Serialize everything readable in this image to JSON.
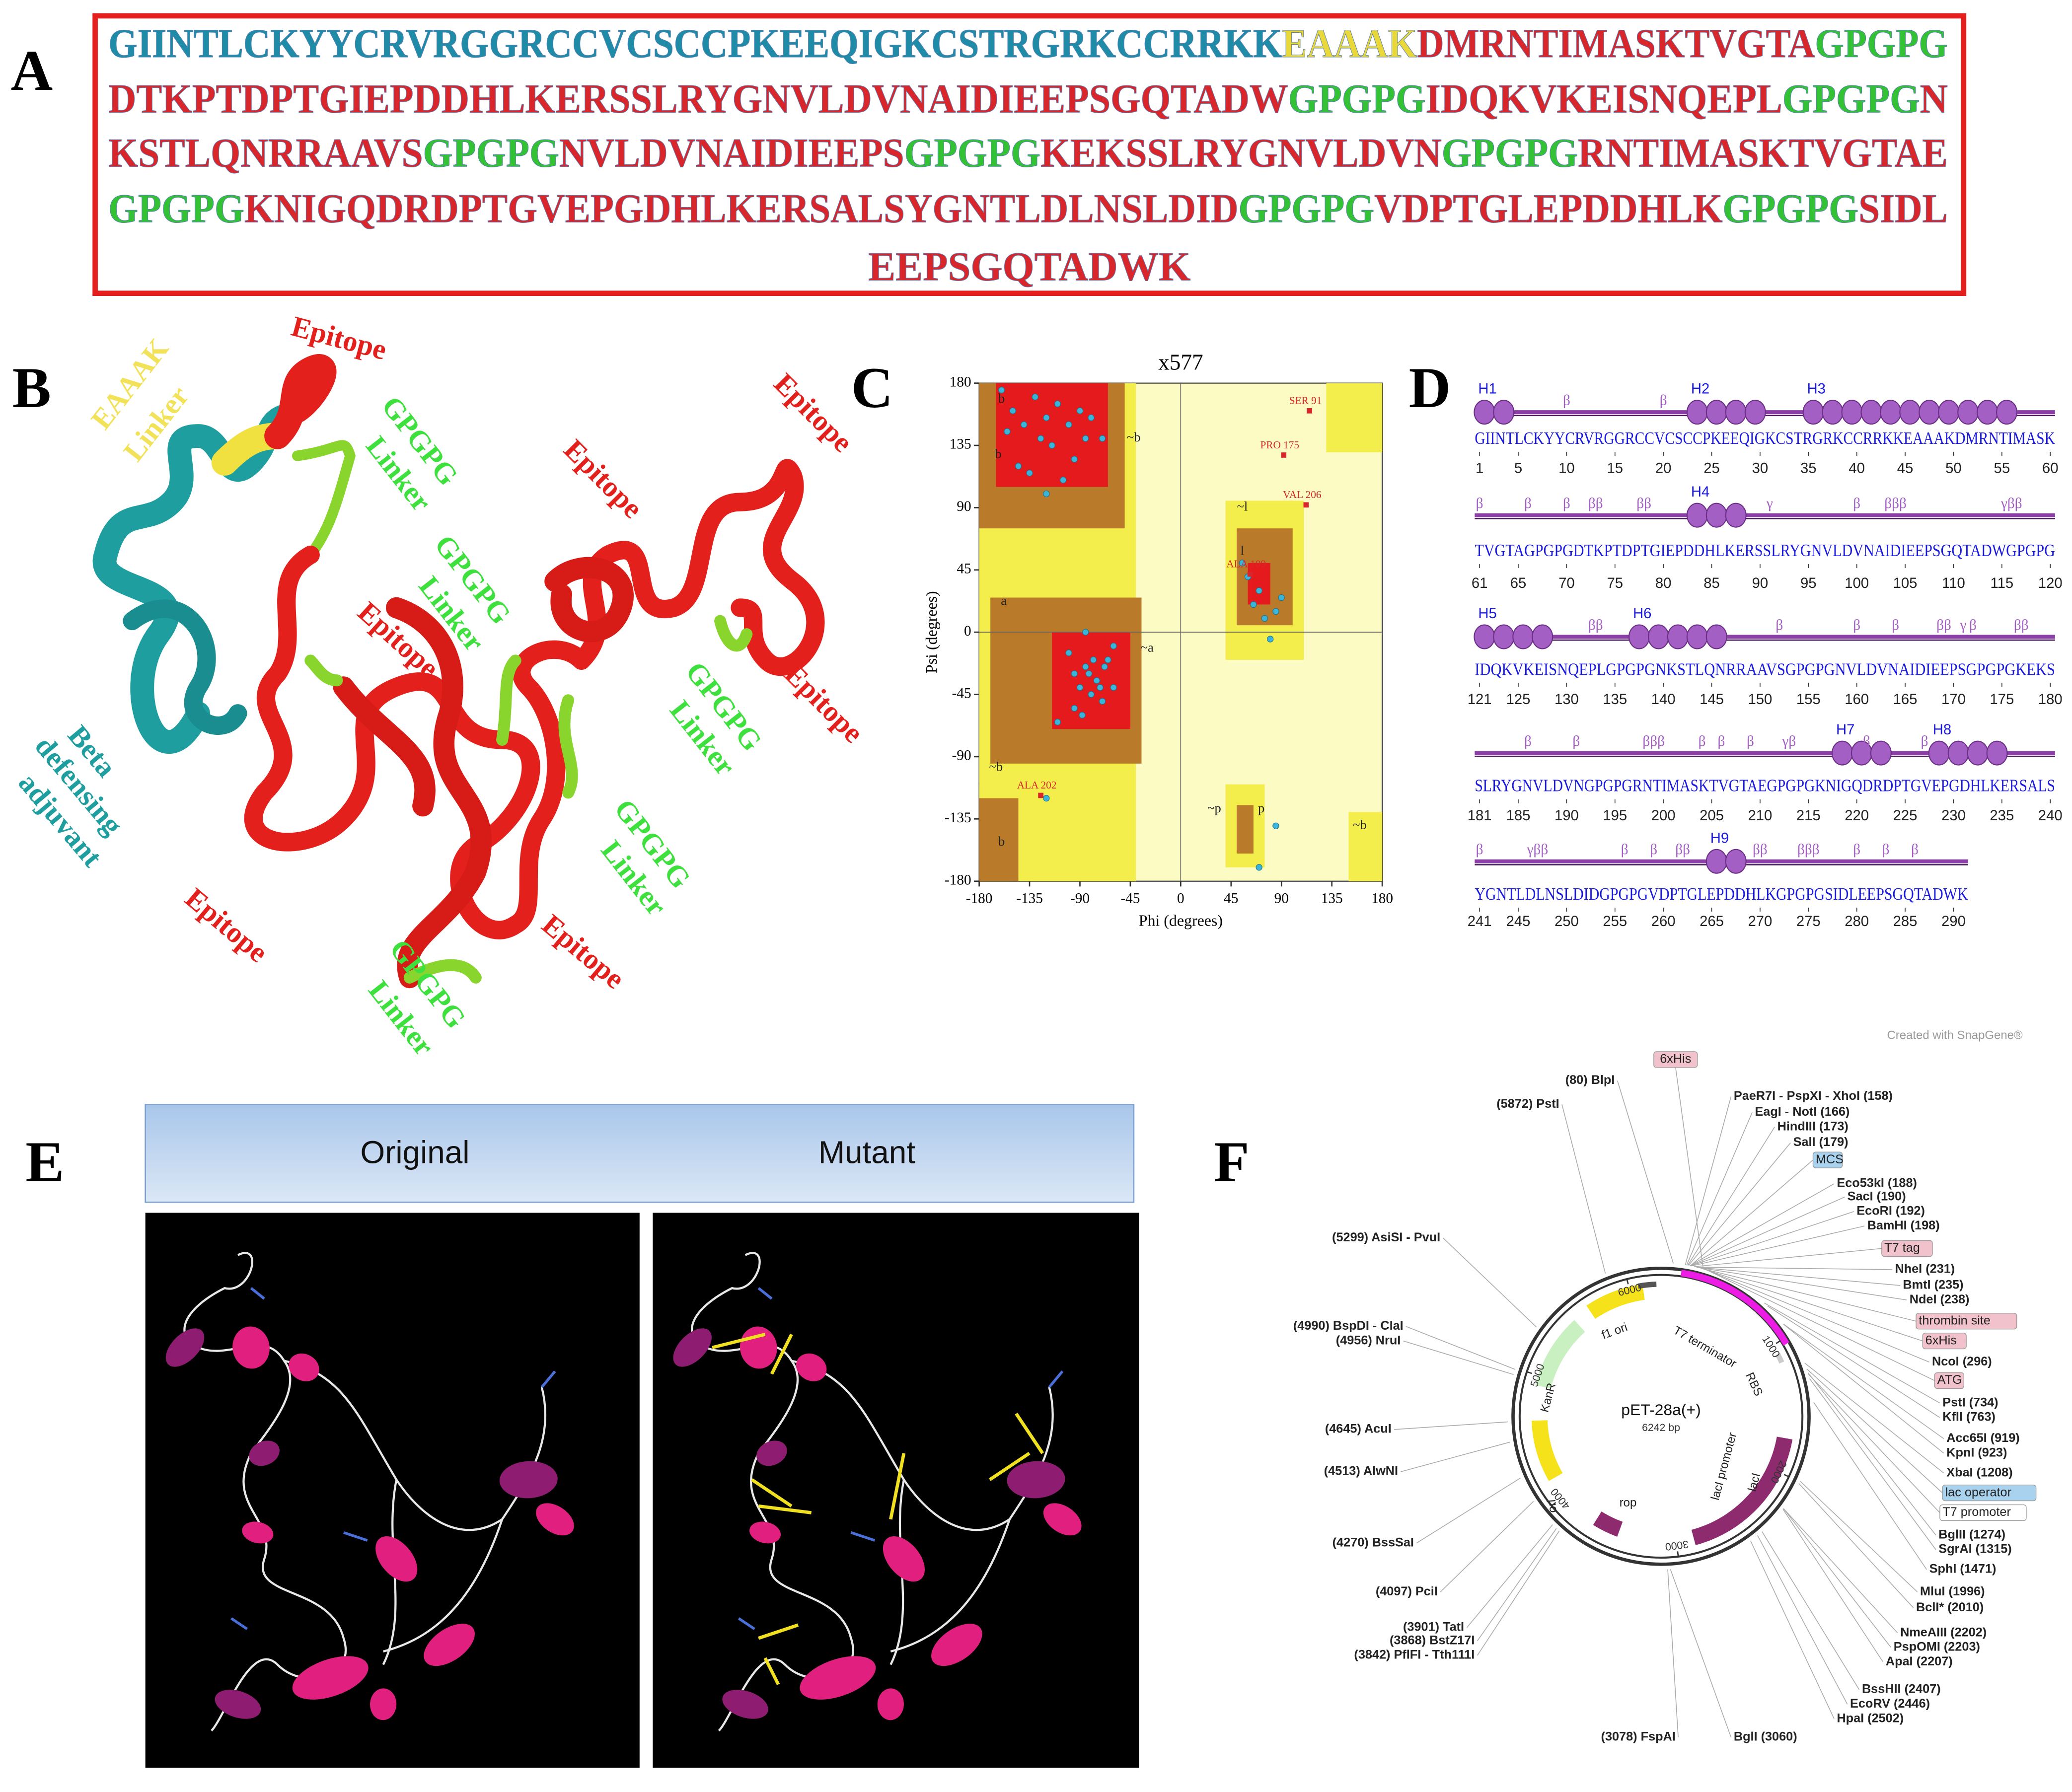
{
  "panel_labels": [
    "A",
    "B",
    "C",
    "D",
    "E",
    "F"
  ],
  "panel_a": {
    "lines": [
      [
        {
          "text": "GIINTLCKYYCRVRGGRCCVCSCCPKEEQIGKCSTRGRKCCRRKK",
          "color": "#1e8ca6"
        },
        {
          "text": "EAAAK",
          "color": "#e8d83a"
        },
        {
          "text": "DMRNTIMASKTVGTA",
          "color": "#d9262b"
        },
        {
          "text": "GPGPG",
          "color": "#33c233"
        }
      ],
      [
        {
          "text": "DTKPTDPTGIEPDDHLKERSSLRYGNVLDVNAIDIEEPSGQTADW",
          "color": "#d9262b"
        },
        {
          "text": "GPGPG",
          "color": "#33c233"
        },
        {
          "text": "IDQKVKEISNQEPL",
          "color": "#d9262b"
        },
        {
          "text": "GPGPG",
          "color": "#33c233"
        },
        {
          "text": "N",
          "color": "#d9262b"
        }
      ],
      [
        {
          "text": "KSTLQNRRAAVS",
          "color": "#d9262b"
        },
        {
          "text": "GPGPG",
          "color": "#33c233"
        },
        {
          "text": "NVLDVNAIDIEEPS",
          "color": "#d9262b"
        },
        {
          "text": "GPGPG",
          "color": "#33c233"
        },
        {
          "text": "KEKSSLRYGNVLDVN",
          "color": "#d9262b"
        },
        {
          "text": "GPGPG",
          "color": "#33c233"
        },
        {
          "text": "RNTIMASKTVGTAE",
          "color": "#d9262b"
        }
      ],
      [
        {
          "text": "GPGPG",
          "color": "#33c233"
        },
        {
          "text": "KNIGQDRDPTGVEPGDHLKERSALSYGNTLDLNSLDID",
          "color": "#d9262b"
        },
        {
          "text": "GPGPG",
          "color": "#33c233"
        },
        {
          "text": "VDPTGLEPDDHLK",
          "color": "#d9262b"
        },
        {
          "text": "GPGPG",
          "color": "#33c233"
        },
        {
          "text": "SIDL",
          "color": "#d9262b"
        }
      ],
      [
        {
          "text": "EEPSGQTADWK",
          "color": "#d9262b"
        }
      ]
    ]
  },
  "panel_b": {
    "labels": [
      {
        "text": "Epitope",
        "color": "#e3201c"
      },
      {
        "text": "EAAAK",
        "color": "#f2e25a"
      },
      {
        "text": "Linker",
        "color": "#f2e25a"
      },
      {
        "text": "GPGPG",
        "color": "#3ee03e"
      },
      {
        "text": "Linker",
        "color": "#3ee03e"
      },
      {
        "text": "Epitope",
        "color": "#e3201c"
      },
      {
        "text": "Epitope",
        "color": "#e3201c"
      },
      {
        "text": "GPGPG",
        "color": "#3ee03e"
      },
      {
        "text": "Linker",
        "color": "#3ee03e"
      },
      {
        "text": "Epitope",
        "color": "#e3201c"
      },
      {
        "text": "Epitope",
        "color": "#e3201c"
      },
      {
        "text": "GPGPG",
        "color": "#3ee03e"
      },
      {
        "text": "Linker",
        "color": "#3ee03e"
      },
      {
        "text": "Beta",
        "color": "#1f9ea0"
      },
      {
        "text": "defensing",
        "color": "#1f9ea0"
      },
      {
        "text": "adjuvant",
        "color": "#1f9ea0"
      },
      {
        "text": "Epitope",
        "color": "#e3201c"
      },
      {
        "text": "GPGPG",
        "color": "#3ee03e"
      },
      {
        "text": "Linker",
        "color": "#3ee03e"
      },
      {
        "text": "Epitope",
        "color": "#e3201c"
      },
      {
        "text": "GPGPG",
        "color": "#3ee03e"
      },
      {
        "text": "Linker",
        "color": "#3ee03e"
      }
    ]
  },
  "chart_data": {
    "type": "scatter",
    "title": "x577",
    "x_label": "Phi (degrees)",
    "y_label": "Psi (degrees)",
    "xlim": [
      -180,
      180
    ],
    "ylim": [
      -180,
      180
    ],
    "xticks": [
      -180,
      -135,
      -90,
      -45,
      0,
      45,
      90,
      135,
      180
    ],
    "yticks": [
      -180,
      -135,
      -90,
      -45,
      0,
      45,
      90,
      135,
      180
    ],
    "color": "#3ab4d8",
    "x": [
      -150,
      -140,
      -130,
      -125,
      -120,
      -115,
      -110,
      -100,
      -95,
      -90,
      -85,
      -80,
      -145,
      -135,
      -105,
      -70,
      -160,
      -155,
      -120,
      -95,
      -90,
      -85,
      -80,
      -75,
      -70,
      -65,
      -60,
      -100,
      -95,
      -88,
      -82,
      -78,
      -72,
      -68,
      -110,
      -60,
      -85,
      60,
      65,
      70,
      75,
      80,
      85,
      90,
      55,
      -120,
      85,
      70
    ],
    "y": [
      160,
      150,
      170,
      140,
      155,
      135,
      165,
      150,
      125,
      160,
      140,
      155,
      120,
      115,
      110,
      140,
      175,
      145,
      100,
      -30,
      -40,
      -25,
      -45,
      -35,
      -50,
      -20,
      -40,
      -15,
      -55,
      -60,
      -30,
      -20,
      -40,
      -25,
      -65,
      -10,
      0,
      40,
      20,
      30,
      10,
      -5,
      15,
      25,
      50,
      -120,
      -140,
      -170
    ],
    "annotations": [
      {
        "text": "SER 91",
        "x": 115,
        "y": 160,
        "color": "#d9262b"
      },
      {
        "text": "PRO 175",
        "x": 92,
        "y": 128,
        "color": "#d9262b"
      },
      {
        "text": "VAL 206",
        "x": 112,
        "y": 92,
        "color": "#d9262b"
      },
      {
        "text": "ALA 109",
        "x": 62,
        "y": 42,
        "color": "#d9262b"
      },
      {
        "text": "ALA 202",
        "x": -125,
        "y": -118,
        "color": "#d9262b"
      }
    ],
    "region_labels": [
      "b",
      "b",
      "a",
      "l",
      "~b",
      "~a",
      "~l",
      "~b",
      "~p",
      "p",
      "~b",
      "b"
    ]
  },
  "panel_d": {
    "rows": [
      {
        "sequence": "GIINTLCKYYCRVRGGRCCVCSCCPKEEQIGKCSTRGRKCCRRKKEAAAKDMRNTIMASK",
        "start": 1,
        "numbers": [
          1,
          5,
          10,
          15,
          20,
          25,
          30,
          35,
          40,
          45,
          50,
          55,
          60
        ],
        "helices": [
          "H1",
          "H2",
          "H3"
        ],
        "marks": [
          "β",
          "β"
        ]
      },
      {
        "sequence": "TVGTAGPGPGDTKPTDPTGIEPDDHLKERSSLRYGNVLDVNAIDIEEPSGQTADWGPGPG",
        "start": 61,
        "numbers": [
          61,
          65,
          70,
          75,
          80,
          85,
          90,
          95,
          100,
          105,
          110,
          115,
          120
        ],
        "helices": [
          "H4"
        ],
        "marks": [
          "β",
          "β",
          "β",
          "ββ",
          "ββ",
          "γ",
          "β",
          "βββ",
          "γββ"
        ]
      },
      {
        "sequence": "IDQKVKEISNQEPLGPGPGNKSTLQNRRAAVSGPGPGNVLDVNAIDIEEPSGPGPGKEKS",
        "start": 121,
        "numbers": [
          121,
          125,
          130,
          135,
          140,
          145,
          150,
          155,
          160,
          165,
          170,
          175,
          180
        ],
        "helices": [
          "H5",
          "H6"
        ],
        "marks": [
          "ββ",
          "β",
          "β",
          "β",
          "ββ",
          "γ",
          "β",
          "ββ"
        ]
      },
      {
        "sequence": "SLRYGNVLDVNGPGPGRNTIMASKTVGTAEGPGPGKNIGQDRDPTGVEPGDHLKERSALS",
        "start": 181,
        "numbers": [
          181,
          185,
          190,
          195,
          200,
          205,
          210,
          215,
          220,
          225,
          230,
          235,
          240
        ],
        "helices": [
          "H7",
          "H8"
        ],
        "marks": [
          "β",
          "β",
          "βββ",
          "β",
          "β",
          "β",
          "γβ",
          "β",
          "β"
        ]
      },
      {
        "sequence": "YGNTLDLNSLDIDGPGPGVDPTGLEPDDHLKGPGPGSIDLEEPSGQTADWK",
        "start": 241,
        "numbers": [
          241,
          245,
          250,
          255,
          260,
          265,
          270,
          275,
          280,
          285,
          290
        ],
        "helices": [
          "H9"
        ],
        "marks": [
          "β",
          "γββ",
          "β",
          "β",
          "ββ",
          "ββ",
          "βββ",
          "β",
          "β",
          "β"
        ]
      }
    ]
  },
  "panel_e": {
    "headers": [
      "Original",
      "Mutant"
    ]
  },
  "panel_f": {
    "credit": "Created with SnapGene®",
    "name": "pET-28a(+)",
    "size": "6242 bp",
    "ring_ticks": [
      "1000",
      "2000",
      "3000",
      "4000",
      "5000",
      "6000"
    ],
    "features": [
      "f1 ori",
      "T7 terminator",
      "KanR",
      "ori",
      "rop",
      "lacI",
      "lacI promoter",
      "RBS"
    ],
    "sites_right": [
      {
        "text": "PaeR7I - PspXI - XhoI  (158)"
      },
      {
        "text": "EagI - NotI  (166)"
      },
      {
        "text": "HindIII  (173)"
      },
      {
        "text": "SalI  (179)"
      },
      {
        "text": "MCS",
        "box": "#a9d2ee"
      },
      {
        "text": "Eco53kI  (188)"
      },
      {
        "text": "SacI  (190)"
      },
      {
        "text": "EcoRI  (192)"
      },
      {
        "text": "BamHI  (198)"
      },
      {
        "text": "T7 tag",
        "box": "#f1c2cc"
      },
      {
        "text": "NheI  (231)"
      },
      {
        "text": "BmtI  (235)"
      },
      {
        "text": "NdeI  (238)"
      },
      {
        "text": "thrombin site",
        "box": "#f1c2cc"
      },
      {
        "text": "6xHis",
        "box": "#f1c2cc"
      },
      {
        "text": "NcoI  (296)"
      },
      {
        "text": "ATG",
        "box": "#f1c2cc"
      },
      {
        "text": "PstI  (734)"
      },
      {
        "text": "KflI  (763)"
      },
      {
        "text": "Acc65I  (919)"
      },
      {
        "text": "KpnI  (923)"
      },
      {
        "text": "XbaI  (1208)"
      },
      {
        "text": "lac operator",
        "box": "#a9d2ee"
      },
      {
        "text": "T7 promoter",
        "box": "#ffffff"
      },
      {
        "text": "BglII  (1274)"
      },
      {
        "text": "SgrAI  (1315)"
      },
      {
        "text": "SphI  (1471)"
      },
      {
        "text": "MluI  (1996)"
      },
      {
        "text": "BclI*  (2010)"
      },
      {
        "text": "NmeAIII  (2202)"
      },
      {
        "text": "PspOMI  (2203)"
      },
      {
        "text": "ApaI  (2207)"
      },
      {
        "text": "BssHII  (2407)"
      },
      {
        "text": "EcoRV  (2446)"
      },
      {
        "text": "HpaI  (2502)"
      }
    ],
    "sites_left": [
      {
        "text": "(80)  BlpI"
      },
      {
        "text": "6xHis",
        "box": "#f1c2cc"
      },
      {
        "text": "(5872)  PstI"
      },
      {
        "text": "(5299)  AsiSI - PvuI"
      },
      {
        "text": "(4990)  BspDI - ClaI"
      },
      {
        "text": "(4956)  NruI"
      },
      {
        "text": "(4645)  AcuI"
      },
      {
        "text": "(4513)  AlwNI"
      },
      {
        "text": "(4270)  BssSaI"
      },
      {
        "text": "(4097)  PciI"
      },
      {
        "text": "(3901)  TatI"
      },
      {
        "text": "(3868)  BstZ17I"
      },
      {
        "text": "(3842)  PflFI - Tth111I"
      },
      {
        "text": "(3078)  FspAI"
      },
      {
        "text": "BglI  (3060)"
      }
    ]
  }
}
